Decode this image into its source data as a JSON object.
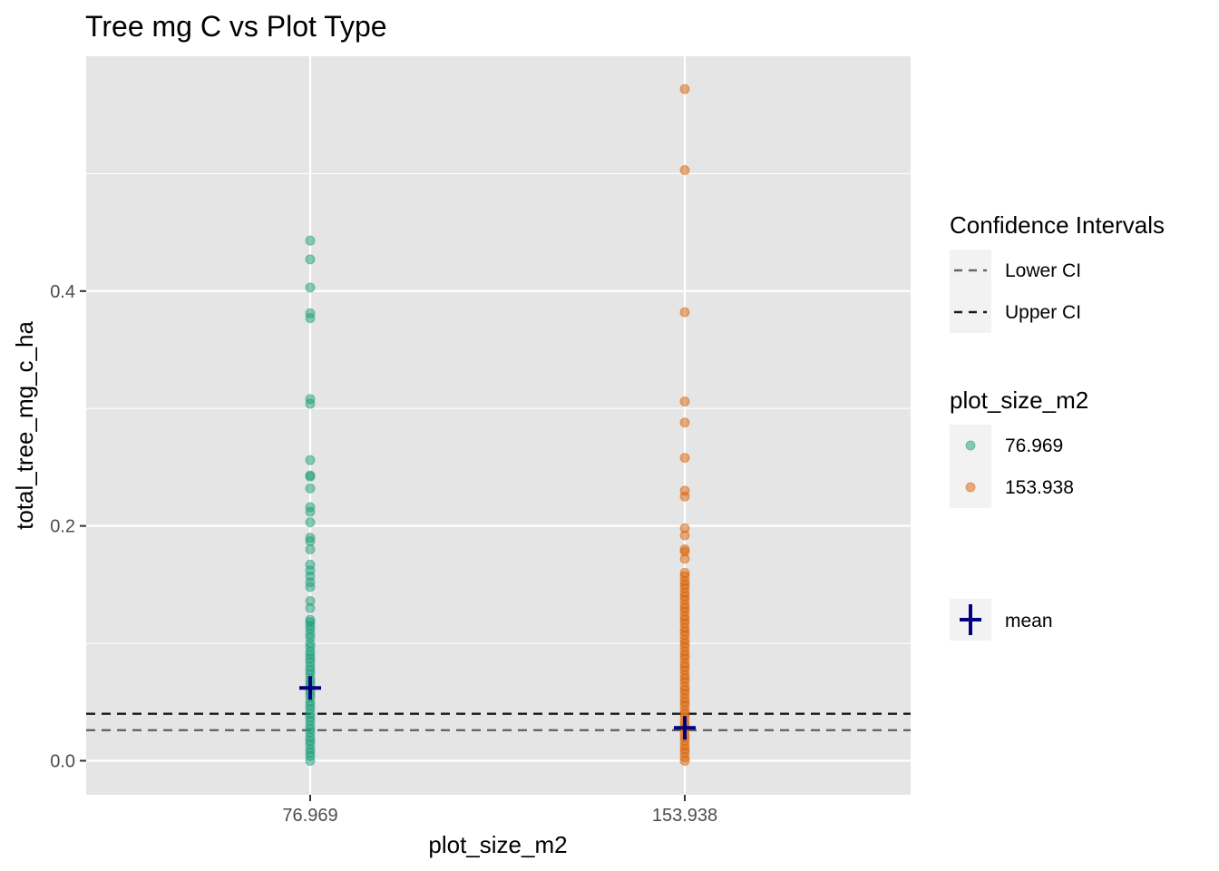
{
  "chart_data": {
    "type": "scatter",
    "title": "Tree mg C vs Plot Type",
    "xlabel": "plot_size_m2",
    "ylabel": "total_tree_mg_c_ha",
    "ylim": [
      -0.029,
      0.6
    ],
    "grid": true,
    "x_categories": [
      "76.969",
      "153.938"
    ],
    "y_ticks": [
      {
        "value": 0.0,
        "label": "0.0"
      },
      {
        "value": 0.2,
        "label": "0.2"
      },
      {
        "value": 0.4,
        "label": "0.4"
      }
    ],
    "y_minor_ticks": [
      0.1,
      0.3,
      0.5
    ],
    "series": [
      {
        "name": "76.969",
        "color": "#1b9e77",
        "x_category": "76.969",
        "points": [
          0.443,
          0.427,
          0.403,
          0.381,
          0.377,
          0.308,
          0.304,
          0.256,
          0.243,
          0.242,
          0.232,
          0.216,
          0.212,
          0.203,
          0.19,
          0.187,
          0.18,
          0.167,
          0.162,
          0.157,
          0.152,
          0.148,
          0.136,
          0.13,
          0.12,
          0.118,
          0.115,
          0.112,
          0.108,
          0.105,
          0.1,
          0.097,
          0.093,
          0.09,
          0.087,
          0.084,
          0.08,
          0.077,
          0.074,
          0.07,
          0.067,
          0.064,
          0.06,
          0.057,
          0.054,
          0.05,
          0.047,
          0.044,
          0.04,
          0.037,
          0.034,
          0.03,
          0.027,
          0.024,
          0.02,
          0.017,
          0.014,
          0.01,
          0.007,
          0.004,
          0.0
        ],
        "mean": 0.062
      },
      {
        "name": "153.938",
        "color": "#d95f02",
        "x_category": "153.938",
        "points": [
          0.572,
          0.503,
          0.382,
          0.306,
          0.288,
          0.258,
          0.23,
          0.225,
          0.198,
          0.192,
          0.18,
          0.178,
          0.172,
          0.16,
          0.157,
          0.153,
          0.15,
          0.147,
          0.143,
          0.14,
          0.137,
          0.133,
          0.13,
          0.127,
          0.123,
          0.12,
          0.117,
          0.113,
          0.11,
          0.107,
          0.103,
          0.1,
          0.097,
          0.093,
          0.09,
          0.087,
          0.083,
          0.08,
          0.077,
          0.073,
          0.07,
          0.067,
          0.063,
          0.06,
          0.057,
          0.053,
          0.05,
          0.047,
          0.043,
          0.04,
          0.037,
          0.033,
          0.03,
          0.027,
          0.023,
          0.02,
          0.017,
          0.013,
          0.01,
          0.007,
          0.003,
          0.0
        ],
        "mean": 0.028
      }
    ],
    "hlines": [
      {
        "name": "Lower CI",
        "value": 0.026,
        "color": "#666666"
      },
      {
        "name": "Upper CI",
        "value": 0.04,
        "color": "#1a1a1a"
      }
    ],
    "mean_color": "#000080",
    "legend": {
      "placement": "right",
      "ci_title": "Confidence Intervals",
      "ci_items": [
        "Lower CI",
        "Upper CI"
      ],
      "color_title": "plot_size_m2",
      "color_items": [
        "76.969",
        "153.938"
      ],
      "mean_label": "mean"
    }
  }
}
